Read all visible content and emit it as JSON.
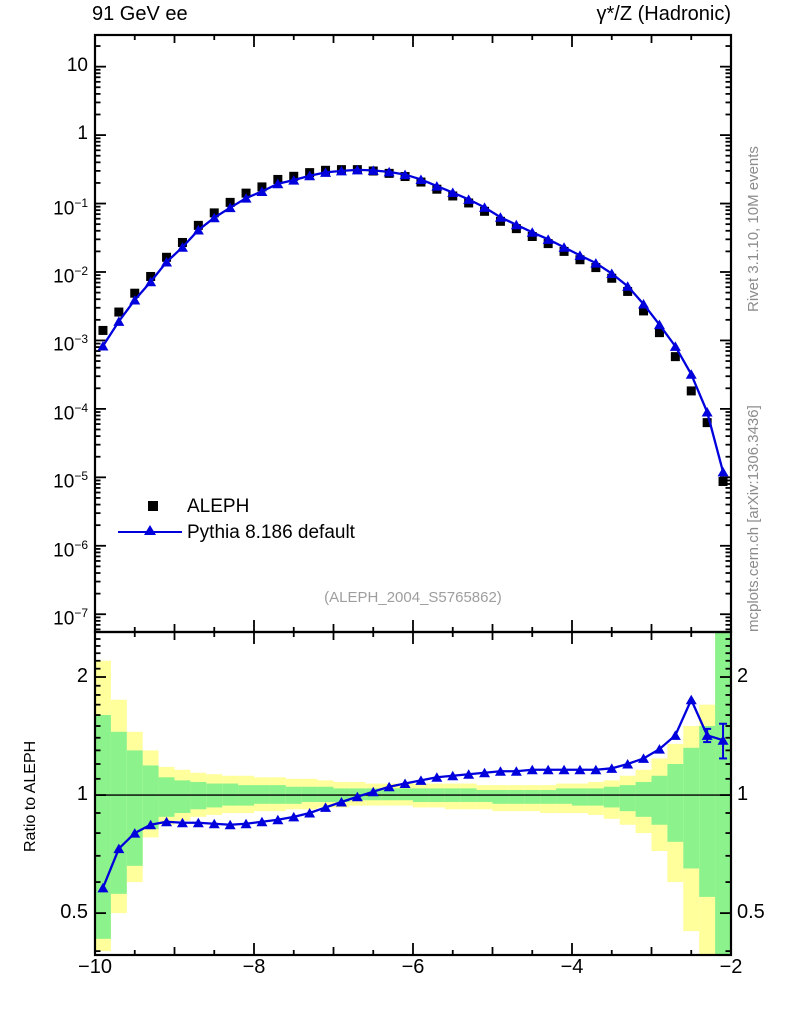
{
  "titles": {
    "left": "91 GeV ee",
    "right": "γ*/Z (Hadronic)"
  },
  "side_labels": {
    "top": "Rivet 3.1.10,  10M events",
    "bottom": "mcplots.cern.ch [arXiv:1306.3436]"
  },
  "watermark": "(ALEPH_2004_S5765862)",
  "ratio_axis_label": "Ratio to ALEPH",
  "legend": [
    {
      "label": "ALEPH",
      "marker": "square",
      "color": "#000000"
    },
    {
      "label": "Pythia 8.186 default",
      "marker": "triangle",
      "color": "#0000dd"
    }
  ],
  "colors": {
    "mc_blue": "#0000dd",
    "data_black": "#000000",
    "band_yellow": "#ffff9c",
    "band_green": "#8cf28c",
    "side_gray": "#8c8c8c",
    "watermark_gray": "#9e9e9e"
  },
  "chart_data": {
    "type": "line",
    "title": "91 GeV ee — γ*/Z (Hadronic)",
    "xlabel": "",
    "ylabel": "",
    "ratio_ylabel": "Ratio to ALEPH",
    "bin_width": 0.2,
    "x_centers": [
      -9.9,
      -9.7,
      -9.5,
      -9.3,
      -9.1,
      -8.9,
      -8.7,
      -8.5,
      -8.3,
      -8.1,
      -7.9,
      -7.7,
      -7.5,
      -7.3,
      -7.1,
      -6.9,
      -6.7,
      -6.5,
      -6.3,
      -6.1,
      -5.9,
      -5.7,
      -5.5,
      -5.3,
      -5.1,
      -4.9,
      -4.7,
      -4.5,
      -4.3,
      -4.1,
      -3.9,
      -3.7,
      -3.5,
      -3.3,
      -3.1,
      -2.9,
      -2.7,
      -2.5,
      -2.3,
      -2.1
    ],
    "series": [
      {
        "name": "ALEPH",
        "marker": "square",
        "color": "#000000",
        "line": false,
        "values": [
          0.0014,
          0.0026,
          0.0049,
          0.0086,
          0.0164,
          0.027,
          0.048,
          0.073,
          0.104,
          0.142,
          0.175,
          0.225,
          0.25,
          0.283,
          0.306,
          0.313,
          0.313,
          0.299,
          0.276,
          0.248,
          0.206,
          0.162,
          0.129,
          0.102,
          0.077,
          0.055,
          0.043,
          0.033,
          0.026,
          0.02,
          0.0151,
          0.0116,
          0.0081,
          0.0052,
          0.0027,
          0.0013,
          0.00058,
          0.000183,
          6.3e-05,
          8.7e-06
        ]
      },
      {
        "name": "Pythia 8.186 default",
        "marker": "triangle",
        "color": "#0000dd",
        "line": true,
        "values": [
          0.00083,
          0.0019,
          0.0039,
          0.0072,
          0.014,
          0.023,
          0.041,
          0.062,
          0.087,
          0.12,
          0.15,
          0.195,
          0.22,
          0.255,
          0.285,
          0.3,
          0.31,
          0.305,
          0.29,
          0.265,
          0.225,
          0.18,
          0.145,
          0.115,
          0.088,
          0.063,
          0.049,
          0.038,
          0.03,
          0.023,
          0.0175,
          0.0135,
          0.0095,
          0.0062,
          0.0034,
          0.0017,
          0.00082,
          0.00032,
          9e-05,
          1.2e-05
        ]
      }
    ],
    "ratio": {
      "name": "Pythia / ALEPH",
      "color": "#0000dd",
      "values": [
        0.58,
        0.73,
        0.8,
        0.84,
        0.855,
        0.85,
        0.85,
        0.845,
        0.84,
        0.845,
        0.855,
        0.865,
        0.88,
        0.9,
        0.93,
        0.96,
        0.99,
        1.02,
        1.05,
        1.07,
        1.09,
        1.11,
        1.12,
        1.13,
        1.14,
        1.15,
        1.15,
        1.16,
        1.16,
        1.16,
        1.16,
        1.16,
        1.17,
        1.2,
        1.24,
        1.31,
        1.42,
        1.75,
        1.42,
        1.38
      ],
      "errors": [
        0,
        0,
        0,
        0,
        0,
        0,
        0,
        0,
        0,
        0,
        0,
        0,
        0,
        0,
        0,
        0,
        0,
        0,
        0,
        0,
        0,
        0,
        0,
        0,
        0,
        0,
        0,
        0,
        0,
        0,
        0,
        0,
        0,
        0,
        0,
        0,
        0,
        0,
        0.055,
        0.14
      ]
    },
    "bands": {
      "yellow": [
        [
          0.4,
          2.2
        ],
        [
          0.5,
          1.75
        ],
        [
          0.6,
          1.45
        ],
        [
          0.78,
          1.3
        ],
        [
          0.84,
          1.18
        ],
        [
          0.86,
          1.16
        ],
        [
          0.88,
          1.14
        ],
        [
          0.89,
          1.13
        ],
        [
          0.9,
          1.12
        ],
        [
          0.9,
          1.12
        ],
        [
          0.91,
          1.11
        ],
        [
          0.91,
          1.11
        ],
        [
          0.92,
          1.1
        ],
        [
          0.92,
          1.1
        ],
        [
          0.93,
          1.09
        ],
        [
          0.93,
          1.08
        ],
        [
          0.94,
          1.08
        ],
        [
          0.94,
          1.07
        ],
        [
          0.94,
          1.07
        ],
        [
          0.94,
          1.07
        ],
        [
          0.93,
          1.07
        ],
        [
          0.93,
          1.07
        ],
        [
          0.92,
          1.07
        ],
        [
          0.92,
          1.07
        ],
        [
          0.92,
          1.06
        ],
        [
          0.91,
          1.06
        ],
        [
          0.91,
          1.06
        ],
        [
          0.91,
          1.06
        ],
        [
          0.9,
          1.06
        ],
        [
          0.9,
          1.07
        ],
        [
          0.9,
          1.07
        ],
        [
          0.89,
          1.08
        ],
        [
          0.87,
          1.09
        ],
        [
          0.84,
          1.12
        ],
        [
          0.8,
          1.16
        ],
        [
          0.72,
          1.24
        ],
        [
          0.6,
          1.35
        ],
        [
          0.45,
          1.5
        ],
        [
          0.36,
          1.7
        ],
        [
          0.39,
          2.61
        ]
      ],
      "green": [
        [
          0.43,
          1.6
        ],
        [
          0.56,
          1.45
        ],
        [
          0.66,
          1.3
        ],
        [
          0.82,
          1.19
        ],
        [
          0.88,
          1.11
        ],
        [
          0.9,
          1.09
        ],
        [
          0.92,
          1.08
        ],
        [
          0.93,
          1.07
        ],
        [
          0.94,
          1.07
        ],
        [
          0.94,
          1.06
        ],
        [
          0.95,
          1.06
        ],
        [
          0.95,
          1.06
        ],
        [
          0.95,
          1.05
        ],
        [
          0.96,
          1.05
        ],
        [
          0.96,
          1.05
        ],
        [
          0.96,
          1.04
        ],
        [
          0.97,
          1.04
        ],
        [
          0.97,
          1.04
        ],
        [
          0.97,
          1.04
        ],
        [
          0.97,
          1.04
        ],
        [
          0.96,
          1.04
        ],
        [
          0.96,
          1.04
        ],
        [
          0.96,
          1.04
        ],
        [
          0.96,
          1.04
        ],
        [
          0.96,
          1.03
        ],
        [
          0.95,
          1.03
        ],
        [
          0.95,
          1.03
        ],
        [
          0.95,
          1.03
        ],
        [
          0.95,
          1.03
        ],
        [
          0.95,
          1.04
        ],
        [
          0.94,
          1.04
        ],
        [
          0.94,
          1.04
        ],
        [
          0.93,
          1.05
        ],
        [
          0.91,
          1.06
        ],
        [
          0.88,
          1.08
        ],
        [
          0.84,
          1.12
        ],
        [
          0.76,
          1.2
        ],
        [
          0.65,
          1.32
        ],
        [
          0.55,
          1.5
        ],
        [
          0.39,
          2.61
        ]
      ]
    },
    "axes": {
      "x": {
        "min": -10,
        "max": -2,
        "major_ticks": [
          -10,
          -8,
          -6,
          -4,
          -2
        ],
        "labels": [
          "−10",
          "−8",
          "−6",
          "−4",
          "−2"
        ],
        "minor_step": 0.5
      },
      "y_main": {
        "scale": "log",
        "min": 5.5e-08,
        "max": 29,
        "label_exponents": [
          1,
          0,
          -1,
          -2,
          -3,
          -4,
          -5,
          -6,
          -7
        ]
      },
      "y_ratio": {
        "scale": "log",
        "min": 0.391,
        "max": 2.605,
        "major_ticks": [
          0.5,
          1,
          2
        ],
        "labels": [
          "0.5",
          "1",
          "2"
        ],
        "minor_ticks": [
          0.4,
          0.6,
          0.7,
          0.8,
          0.9,
          1.1,
          1.2,
          1.3,
          1.4,
          1.5,
          1.6,
          1.7,
          1.8,
          1.9,
          2.1,
          2.2,
          2.3,
          2.4,
          2.5
        ]
      },
      "grid": false,
      "legend_position": "left-middle"
    }
  }
}
